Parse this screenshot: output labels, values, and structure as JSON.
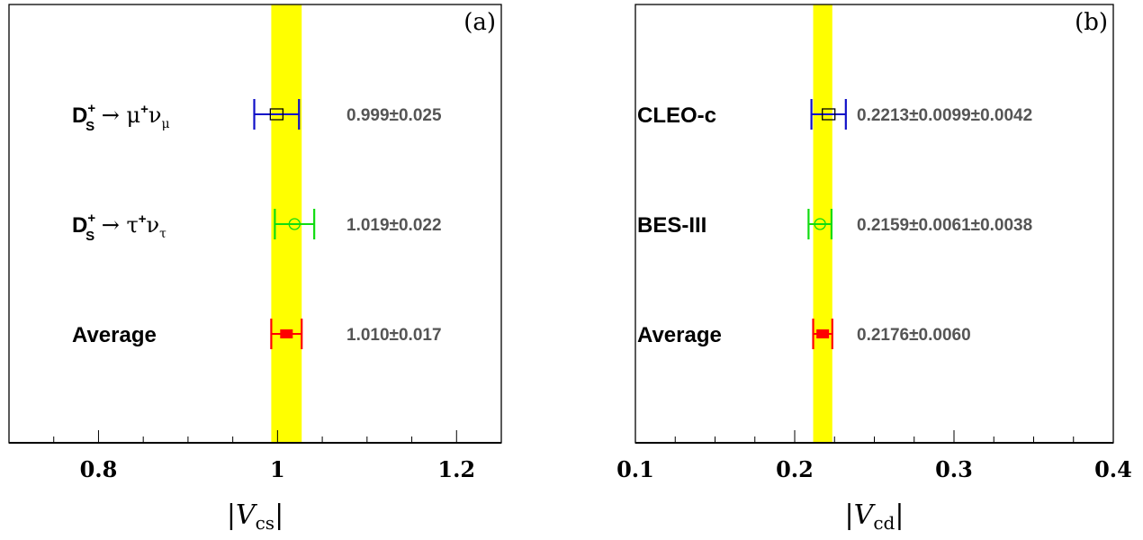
{
  "chart_data": [
    {
      "type": "forest",
      "panel_label": "(a)",
      "xlabel_main": "|V",
      "xlabel_sub": "cs",
      "xlabel_end": "|",
      "xlim": [
        0.7,
        1.25
      ],
      "major_ticks": [
        0.8,
        1.0,
        1.2
      ],
      "tick_labels": [
        "0.8",
        "1",
        "1.2"
      ],
      "minor_step": 0.05,
      "band": {
        "center": 1.01,
        "error": 0.017,
        "color": "#ffff00"
      },
      "entries": [
        {
          "label_main": "D",
          "label_sup": "+",
          "label_sub": "S",
          "label_rest": " → μ",
          "label_rest_sup": "+",
          "label_rest2": "ν",
          "label_rest_sub": "μ",
          "value": 0.999,
          "error": 0.025,
          "text": "0.999±0.025",
          "color": "#1010c8",
          "marker": "open-square"
        },
        {
          "label_main": "D",
          "label_sup": "+",
          "label_sub": "S",
          "label_rest": " → τ",
          "label_rest_sup": "+",
          "label_rest2": "ν",
          "label_rest_sub": "τ",
          "value": 1.019,
          "error": 0.022,
          "text": "1.019±0.022",
          "color": "#10dc10",
          "marker": "open-circle"
        },
        {
          "label_main": "Average",
          "value": 1.01,
          "error": 0.017,
          "text": "1.010±0.017",
          "color": "#ff0000",
          "marker": "filled-square"
        }
      ]
    },
    {
      "type": "forest",
      "panel_label": "(b)",
      "xlabel_main": "|V",
      "xlabel_sub": "cd",
      "xlabel_end": "|",
      "xlim": [
        0.1,
        0.4
      ],
      "major_ticks": [
        0.1,
        0.2,
        0.3,
        0.4
      ],
      "tick_labels": [
        "0.1",
        "0.2",
        "0.3",
        "0.4"
      ],
      "minor_step": 0.025,
      "band": {
        "center": 0.2176,
        "error": 0.006,
        "color": "#ffff00"
      },
      "entries": [
        {
          "label_main": "CLEO-c",
          "value": 0.2213,
          "error": 0.0108,
          "text": "0.2213±0.0099±0.0042",
          "color": "#1010c8",
          "marker": "open-square"
        },
        {
          "label_main": "BES-III",
          "value": 0.2159,
          "error": 0.0072,
          "text": "0.2159±0.0061±0.0038",
          "color": "#10dc10",
          "marker": "open-circle"
        },
        {
          "label_main": "Average",
          "value": 0.2176,
          "error": 0.006,
          "text": "0.2176±0.0060",
          "color": "#ff0000",
          "marker": "filled-square"
        }
      ]
    }
  ]
}
